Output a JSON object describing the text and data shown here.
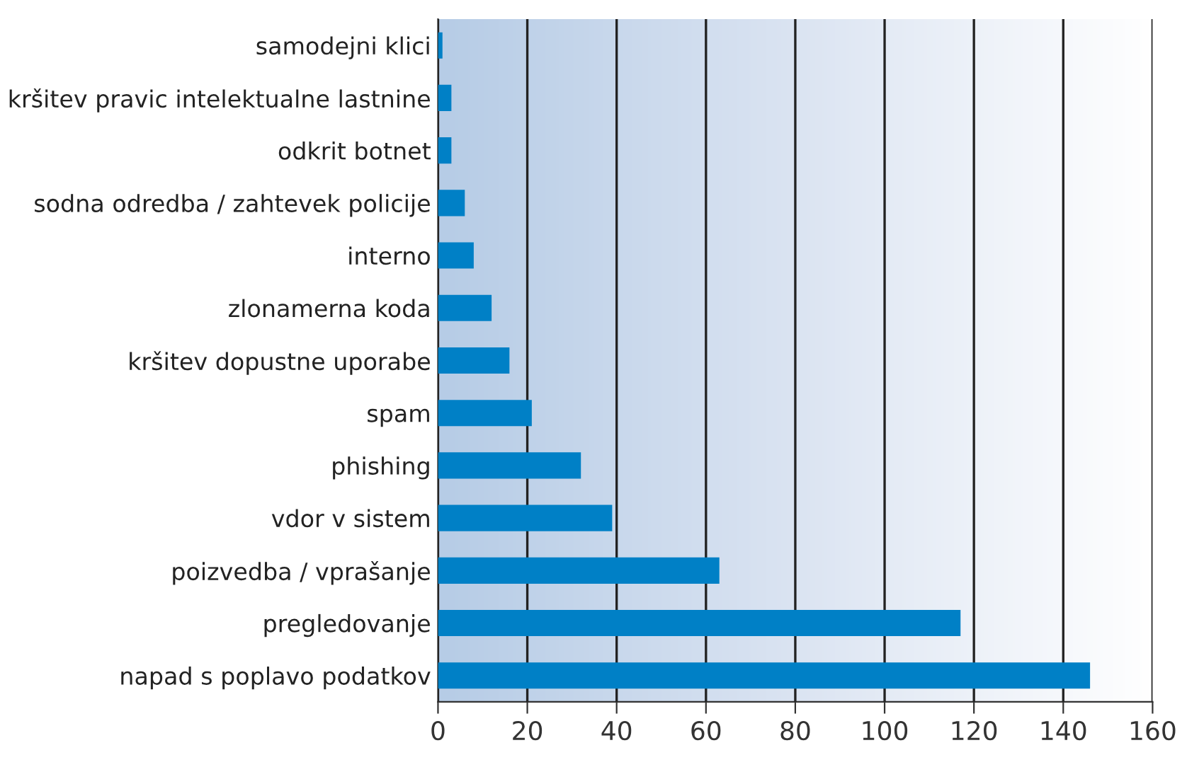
{
  "chart_data": {
    "type": "bar",
    "orientation": "horizontal",
    "categories": [
      "samodejni klici",
      "kršitev pravic intelektualne lastnine",
      "odkrit botnet",
      "sodna odredba / zahtevek policije",
      "interno",
      "zlonamerna koda",
      "kršitev dopustne uporabe",
      "spam",
      "phishing",
      "vdor v sistem",
      "poizvedba / vprašanje",
      "pregledovanje",
      "napad s poplavo podatkov"
    ],
    "values": [
      1,
      3,
      3,
      6,
      8,
      12,
      16,
      21,
      32,
      39,
      63,
      117,
      146
    ],
    "color": "#0080c6",
    "xlim": [
      0,
      160
    ],
    "xticks": [
      0,
      20,
      40,
      60,
      80,
      100,
      120,
      140,
      160
    ],
    "grid": "x"
  }
}
